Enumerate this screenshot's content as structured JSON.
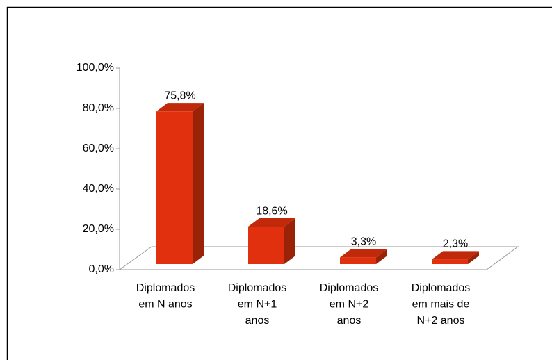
{
  "chart_data": {
    "type": "bar3d",
    "categories": [
      [
        "Diplomados",
        "em N anos"
      ],
      [
        "Diplomados",
        "em N+1",
        "anos"
      ],
      [
        "Diplomados",
        "em N+2",
        "anos"
      ],
      [
        "Diplomados",
        "em mais de",
        "N+2 anos"
      ]
    ],
    "values": [
      75.8,
      18.6,
      3.3,
      2.3
    ],
    "value_labels": [
      "75,8%",
      "18,6%",
      "3,3%",
      "2,3%"
    ],
    "ylim": [
      0,
      100
    ],
    "yticks": [
      {
        "value": 0,
        "label": "0,0%"
      },
      {
        "value": 20,
        "label": "20,0%"
      },
      {
        "value": 40,
        "label": "40,0%"
      },
      {
        "value": 60,
        "label": "60,0%"
      },
      {
        "value": 80,
        "label": "80,0%"
      },
      {
        "value": 100,
        "label": "100,0%"
      }
    ],
    "color": "#e0300e"
  }
}
